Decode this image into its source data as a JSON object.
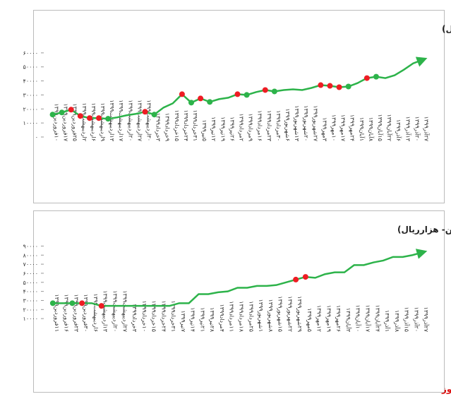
{
  "chart_data": [
    {
      "type": "line",
      "title": "روند نرخ فروش وکیوم باتوم پالایشگاه اصفهان در بورس کالا (تن- هزار ریال)",
      "categories": [
        "۱۰فروردین۱۳۹۹",
        "۱۷فروردین۱۳۹۹",
        "۲۵فروردین۱۳۹۹",
        "۲اردیبهشت۱۳۹۹",
        "۶اردیبهشت۱۳۹۹",
        "۹اردیبهشت۱۳۹۹",
        "۱۳اردیبهشت۱۳۹۹",
        "۱۷اردیبهشت۱۳۹۹",
        "۲۰اردیبهشت۱۳۹۹",
        "۲۷اردیبهشت۱۳۹۹",
        "۳۰اردیبهشت۱۳۹۹",
        "۳خرداد۱۳۹۹",
        "۹خرداد۱۳۹۹",
        "۱۵خرداد۱۳۹۹",
        "۲۴خرداد۱۳۹۹",
        "۳۱خرداد۱۳۹۹",
        "۵تیر۱۳۹۹",
        "۱۲تیر۱۳۹۹",
        "۱۹تیر۱۳۹۹",
        "۲۶تیر۱۳۹۹",
        "۲مرداد۱۳۹۹",
        "۹مرداد۱۳۹۹",
        "۱۶مرداد۱۳۹۹",
        "۲۳مرداد۱۳۹۹",
        "۳۰مرداد۱۳۹۹",
        "۶شهریور۱۳۹۹",
        "۱۳شهریور۱۳۹۹",
        "۲۰شهریور۱۳۹۹",
        "۲۷شهریور۱۳۹۹",
        "۳مهر۱۳۹۹",
        "۱۰مهر۱۳۹۹",
        "۱۷مهر۱۳۹۹",
        "۲۴مهر۱۳۹۹",
        "۱آبان۱۳۹۹",
        "۸آبان۱۳۹۹",
        "۱۵آبان۱۳۹۹",
        "۲۲آبان۱۳۹۹",
        "۶آذر۱۳۹۹",
        "۱۳آذر۱۳۹۹",
        "۲۰آذر۱۳۹۹",
        "۲۷آذر۱۳۹۹"
      ],
      "series": [
        {
          "color": "#2db34a",
          "values": [
            16000,
            17500,
            19500,
            15000,
            13500,
            13500,
            13000,
            14000,
            15500,
            16500,
            18000,
            16000,
            21000,
            24000,
            30500,
            24500,
            27500,
            25000,
            27000,
            28000,
            30500,
            30000,
            32000,
            33500,
            32500,
            33500,
            34000,
            33500,
            35000,
            37000,
            36500,
            35500,
            36000,
            38500,
            42000,
            43000,
            42000,
            44000,
            48000,
            52500,
            55000
          ],
          "marker_colors": [
            "#2db34a",
            "#2db34a",
            "#ee1c24",
            "#ee1c24",
            "#ee1c24",
            "#ee1c24",
            "#2db34a",
            null,
            null,
            null,
            "#ee1c24",
            "#2db34a",
            null,
            null,
            "#ee1c24",
            "#2db34a",
            "#ee1c24",
            "#2db34a",
            null,
            null,
            "#ee1c24",
            "#2db34a",
            null,
            "#ee1c24",
            "#2db34a",
            null,
            null,
            null,
            null,
            "#ee1c24",
            "#ee1c24",
            "#ee1c24",
            "#2db34a",
            null,
            "#ee1c24",
            "#2db34a",
            null,
            null,
            null,
            null,
            null
          ]
        }
      ],
      "ylim": [
        0,
        70000
      ],
      "yticks": [
        {
          "value": 0,
          "label": "۰"
        },
        {
          "value": 10000,
          "label": "۱۰۰۰۰"
        },
        {
          "value": 20000,
          "label": "۲۰۰۰۰"
        },
        {
          "value": 30000,
          "label": "۳۰۰۰۰"
        },
        {
          "value": 40000,
          "label": "۴۰۰۰۰"
        },
        {
          "value": 50000,
          "label": "۵۰۰۰۰"
        },
        {
          "value": 60000,
          "label": "۶۰۰۰۰"
        }
      ]
    },
    {
      "type": "line",
      "title": "روند نرخ فروش لوب کات پالایشگاه اصفهان در بورس کالا(تن- هزارریال)",
      "categories": [
        "۱۱فروردین۱۳۹۹",
        "۱۶فروردین۱۳۹۹",
        "۲۳فروردین۱۳۹۹",
        "۳۰فروردین۱۳۹۹",
        "۶اردیبهشت۱۳۹۹",
        "۱۳اردیبهشت۱۳۹۹",
        "۲۰اردیبهشت۱۳۹۹",
        "۲۷اردیبهشت۱۳۹۹",
        "۳خرداد۱۳۹۹",
        "۱۰خرداد۱۳۹۹",
        "۱۵خرداد۱۳۹۹",
        "۲۴خرداد۱۳۹۹",
        "۳۱خرداد۱۳۹۹",
        "۷تیر۱۳۹۹",
        "۱۴تیر۱۳۹۹",
        "۲۱تیر۱۳۹۹",
        "۲۸تیر۱۳۹۹",
        "۴مرداد۱۳۹۹",
        "۱۱مرداد۱۳۹۹",
        "۱۸مرداد۱۳۹۹",
        "۲۵مرداد۱۳۹۹",
        "۱شهریور۱۳۹۹",
        "۸شهریور۱۳۹۹",
        "۱۵شهریور۱۳۹۹",
        "۲۲شهریور۱۳۹۹",
        "۲۹شهریور۱۳۹۹",
        "۵مهر۱۳۹۹",
        "۱۲مهر۱۳۹۹",
        "۱۹مهر۱۳۹۹",
        "۲۶مهر۱۳۹۹",
        "۳آبان۱۳۹۹",
        "۱۰آبان۱۳۹۹",
        "۱۷آبان۱۳۹۹",
        "۲۴آبان۱۳۹۹",
        "۱آذر۱۳۹۹",
        "۸آذر۱۳۹۹",
        "۱۵آذر۱۳۹۹",
        "۲۰آذر۱۳۹۹",
        "۲۷آذر۱۳۹۹"
      ],
      "series": [
        {
          "color": "#2db34a",
          "values": [
            27000,
            27000,
            27000,
            27000,
            27000,
            24000,
            24000,
            24000,
            24000,
            24000,
            24000,
            24000,
            24000,
            27000,
            27000,
            37000,
            37000,
            39000,
            40000,
            44000,
            44000,
            46000,
            46000,
            47000,
            50000,
            53000,
            56000,
            55000,
            59000,
            61000,
            61000,
            69000,
            69000,
            72000,
            74000,
            78000,
            78000,
            80000,
            83000
          ],
          "marker_colors": [
            "#2db34a",
            null,
            "#2db34a",
            "#ee1c24",
            null,
            "#ee1c24",
            null,
            null,
            null,
            null,
            null,
            null,
            null,
            null,
            null,
            null,
            null,
            null,
            null,
            null,
            null,
            null,
            null,
            null,
            null,
            "#ee1c24",
            "#ee1c24",
            null,
            null,
            null,
            null,
            null,
            null,
            null,
            null,
            null,
            null,
            null,
            null
          ]
        }
      ],
      "ylim": [
        0,
        95000
      ],
      "yticks": [
        {
          "value": 10000,
          "label": "۱۰۰۰۰"
        },
        {
          "value": 20000,
          "label": "۲۰۰۰۰"
        },
        {
          "value": 30000,
          "label": "۳۰۰۰۰"
        },
        {
          "value": 40000,
          "label": "۴۰۰۰۰"
        },
        {
          "value": 50000,
          "label": "۵۰۰۰۰"
        },
        {
          "value": 60000,
          "label": "۶۰۰۰۰"
        },
        {
          "value": 70000,
          "label": "۷۰۰۰۰"
        },
        {
          "value": 80000,
          "label": "۸۰۰۰۰"
        },
        {
          "value": 90000,
          "label": "۹۰۰۰۰"
        }
      ]
    }
  ],
  "footer": "بورس نیوز"
}
